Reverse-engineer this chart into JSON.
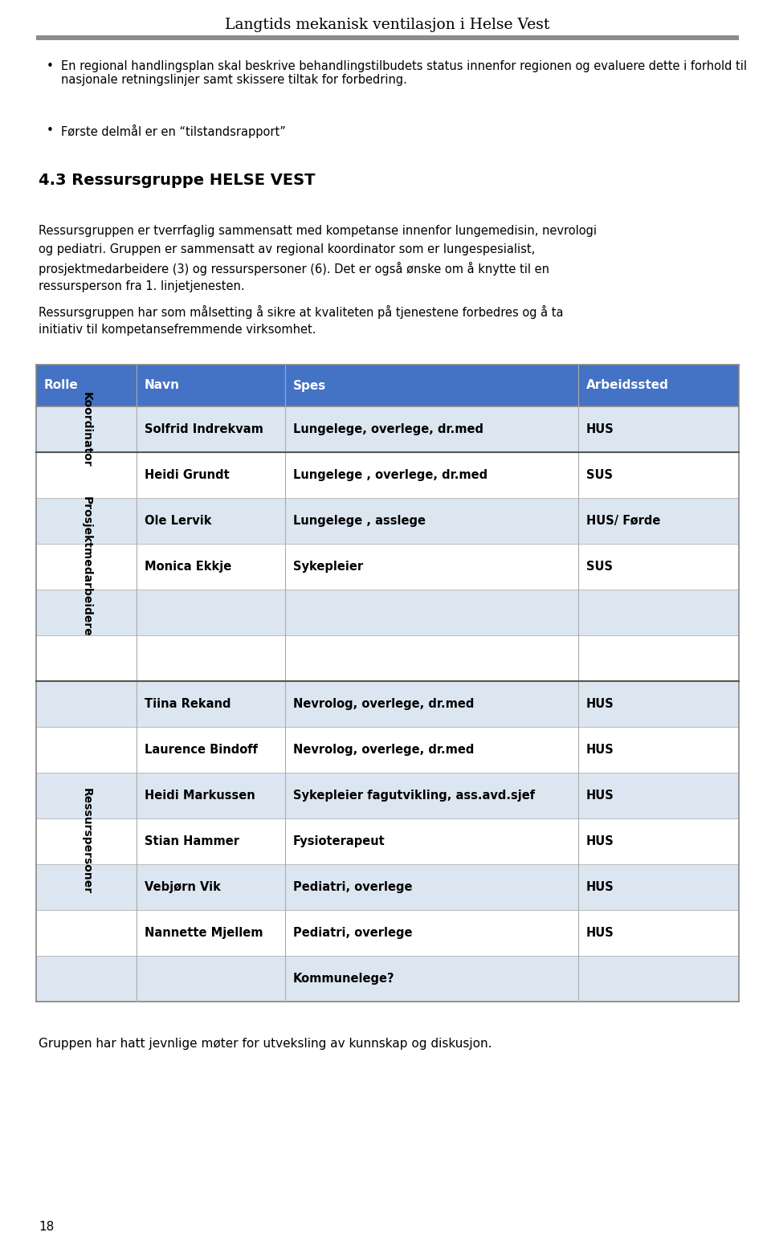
{
  "title": "Langtids mekanisk ventilasjon i Helse Vest",
  "header_bar_color": "#8c8c8c",
  "bullet1": "En regional handlingsplan skal beskrive behandlingstilbudets status innenfor regionen og evaluere dette i forhold til nasjonale retningslinjer samt skissere tiltak for forbedring.",
  "bullet2": "“Første delmål er en “tilstandsrapport”",
  "section_title": "4.3 Ressursgruppe HELSE VEST",
  "body_text1a": "Ressursgruppen er tverrfaglig sammensatt med kompetanse innenfor lungemedisin, nevrologi",
  "body_text1b": "og pediatri. Gruppen er sammensatt av regional koordinator som er lungespesialist,",
  "body_text1c": "prosjektmedarbeidere (3) og ressurspersoner (6). Det er også ønske om å knytte til en",
  "body_text1d": "ressursperson fra 1. linjetjenesten.",
  "body_text2a": "Ressursgruppen har som målsetting å sikre at kvaliteten på tjenestene forbedres og å ta",
  "body_text2b": "initiativ til kompetansefremmende virksomhet.",
  "table_header_bg": "#4472C4",
  "table_header_text_color": "#ffffff",
  "col_headers": [
    "Rolle",
    "Navn",
    "Spes",
    "Arbeidssted"
  ],
  "rows": [
    {
      "group": "Koordinator",
      "name": "Solfrid Indrekvam",
      "spes": "Lungelege, overlege, dr.med",
      "sted": "HUS",
      "bg": "#dce6f1"
    },
    {
      "group": "Prosjektmedarbeidere",
      "name": "Heidi Grundt",
      "spes": "Lungelege , overlege, dr.med",
      "sted": "SUS",
      "bg": "#ffffff"
    },
    {
      "group": "Prosjektmedarbeidere",
      "name": "Ole Lervik",
      "spes": "Lungelege , asslege",
      "sted": "HUS/ Førde",
      "bg": "#dce6f1"
    },
    {
      "group": "Prosjektmedarbeidere",
      "name": "Monica Ekkje",
      "spes": "Sykepleier",
      "sted": "SUS",
      "bg": "#ffffff"
    },
    {
      "group": "Prosjektmedarbeidere",
      "name": "",
      "spes": "",
      "sted": "",
      "bg": "#dce6f1"
    },
    {
      "group": "Prosjektmedarbeidere",
      "name": "",
      "spes": "",
      "sted": "",
      "bg": "#ffffff"
    },
    {
      "group": "Ressurspersoner",
      "name": "Tiina Rekand",
      "spes": "Nevrolog, overlege, dr.med",
      "sted": "HUS",
      "bg": "#dce6f1"
    },
    {
      "group": "Ressurspersoner",
      "name": "Laurence Bindoff",
      "spes": "Nevrolog, overlege, dr.med",
      "sted": "HUS",
      "bg": "#ffffff"
    },
    {
      "group": "Ressurspersoner",
      "name": "Heidi Markussen",
      "spes": "Sykepleier fagutvikling, ass.avd.sjef",
      "sted": "HUS",
      "bg": "#dce6f1"
    },
    {
      "group": "Ressurspersoner",
      "name": "Stian Hammer",
      "spes": "Fysioterapeut",
      "sted": "HUS",
      "bg": "#ffffff"
    },
    {
      "group": "Ressurspersoner",
      "name": "Vebjørn Vik",
      "spes": "Pediatri, overlege",
      "sted": "HUS",
      "bg": "#dce6f1"
    },
    {
      "group": "Ressurspersoner",
      "name": "Nannette Mjellem",
      "spes": "Pediatri, overlege",
      "sted": "HUS",
      "bg": "#ffffff"
    },
    {
      "group": "Ressurspersoner",
      "name": "",
      "spes": "Kommunelege?",
      "sted": "",
      "bg": "#dce6f1"
    }
  ],
  "footer_text": "Gruppen har hatt jevnlige møter for utveksling av kunnskap og diskusjon.",
  "page_number": "18",
  "group_spans": {
    "Koordinator": [
      0,
      0
    ],
    "Prosjektmedarbeidere": [
      1,
      5
    ],
    "Ressurspersoner": [
      6,
      12
    ]
  }
}
